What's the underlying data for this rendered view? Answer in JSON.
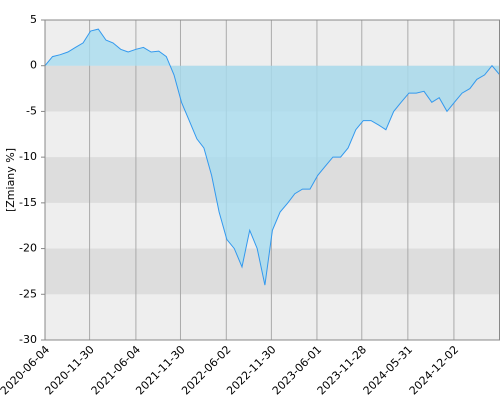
{
  "chart_data": {
    "type": "area",
    "y_label": "[Zmiany %]",
    "x": [
      "2020-06-04",
      "2020-07-04",
      "2020-08-04",
      "2020-09-04",
      "2020-10-04",
      "2020-11-04",
      "2020-12-04",
      "2021-01-04",
      "2021-02-04",
      "2021-03-04",
      "2021-04-04",
      "2021-05-04",
      "2021-06-04",
      "2021-07-04",
      "2021-08-04",
      "2021-09-04",
      "2021-10-04",
      "2021-11-04",
      "2021-12-04",
      "2022-01-04",
      "2022-02-04",
      "2022-03-04",
      "2022-04-04",
      "2022-05-04",
      "2022-06-04",
      "2022-07-04",
      "2022-08-04",
      "2022-09-04",
      "2022-10-04",
      "2022-11-04",
      "2022-12-04",
      "2023-01-04",
      "2023-02-04",
      "2023-03-04",
      "2023-04-04",
      "2023-05-04",
      "2023-06-04",
      "2023-07-04",
      "2023-08-04",
      "2023-09-04",
      "2023-10-04",
      "2023-11-04",
      "2023-12-04",
      "2024-01-04",
      "2024-02-04",
      "2024-03-04",
      "2024-04-04",
      "2024-05-04",
      "2024-06-04",
      "2024-07-04",
      "2024-08-04",
      "2024-09-04",
      "2024-10-04",
      "2024-11-04",
      "2024-12-04",
      "2025-01-04",
      "2025-02-04",
      "2025-03-04",
      "2025-04-04",
      "2025-05-04",
      "2025-06-04"
    ],
    "values": [
      0,
      1,
      1.2,
      1.5,
      2,
      2.5,
      3.8,
      4,
      2.8,
      2.5,
      1.8,
      1.5,
      1.8,
      2,
      1.5,
      1.6,
      1.0,
      -1,
      -4,
      -6,
      -8,
      -9,
      -12,
      -16,
      -19,
      -20,
      -22,
      -18,
      -20,
      -24,
      -18,
      -16,
      -15,
      -14,
      -13.5,
      -13.5,
      -12,
      -11,
      -10,
      -10,
      -9,
      -7,
      -6,
      -6,
      -6.5,
      -7,
      -5,
      -4,
      -3,
      -3,
      -2.8,
      -4,
      -3.5,
      -5,
      -4,
      -3,
      -2.5,
      -1.5,
      -1,
      0,
      -1
    ],
    "color": "#3399ee",
    "fill": "#a8dcef",
    "xlim": [
      "2020-06-04",
      "2025-06-05"
    ],
    "xticks": [
      "2020-06-04",
      "2020-11-30",
      "2021-06-04",
      "2021-11-30",
      "2022-06-02",
      "2022-11-30",
      "2023-06-01",
      "2023-11-28",
      "2024-05-31",
      "2024-12-02"
    ],
    "ylim": [
      -30,
      5
    ],
    "yticks": [
      5,
      0,
      -5,
      -10,
      -15,
      -20,
      -25,
      -30
    ]
  }
}
